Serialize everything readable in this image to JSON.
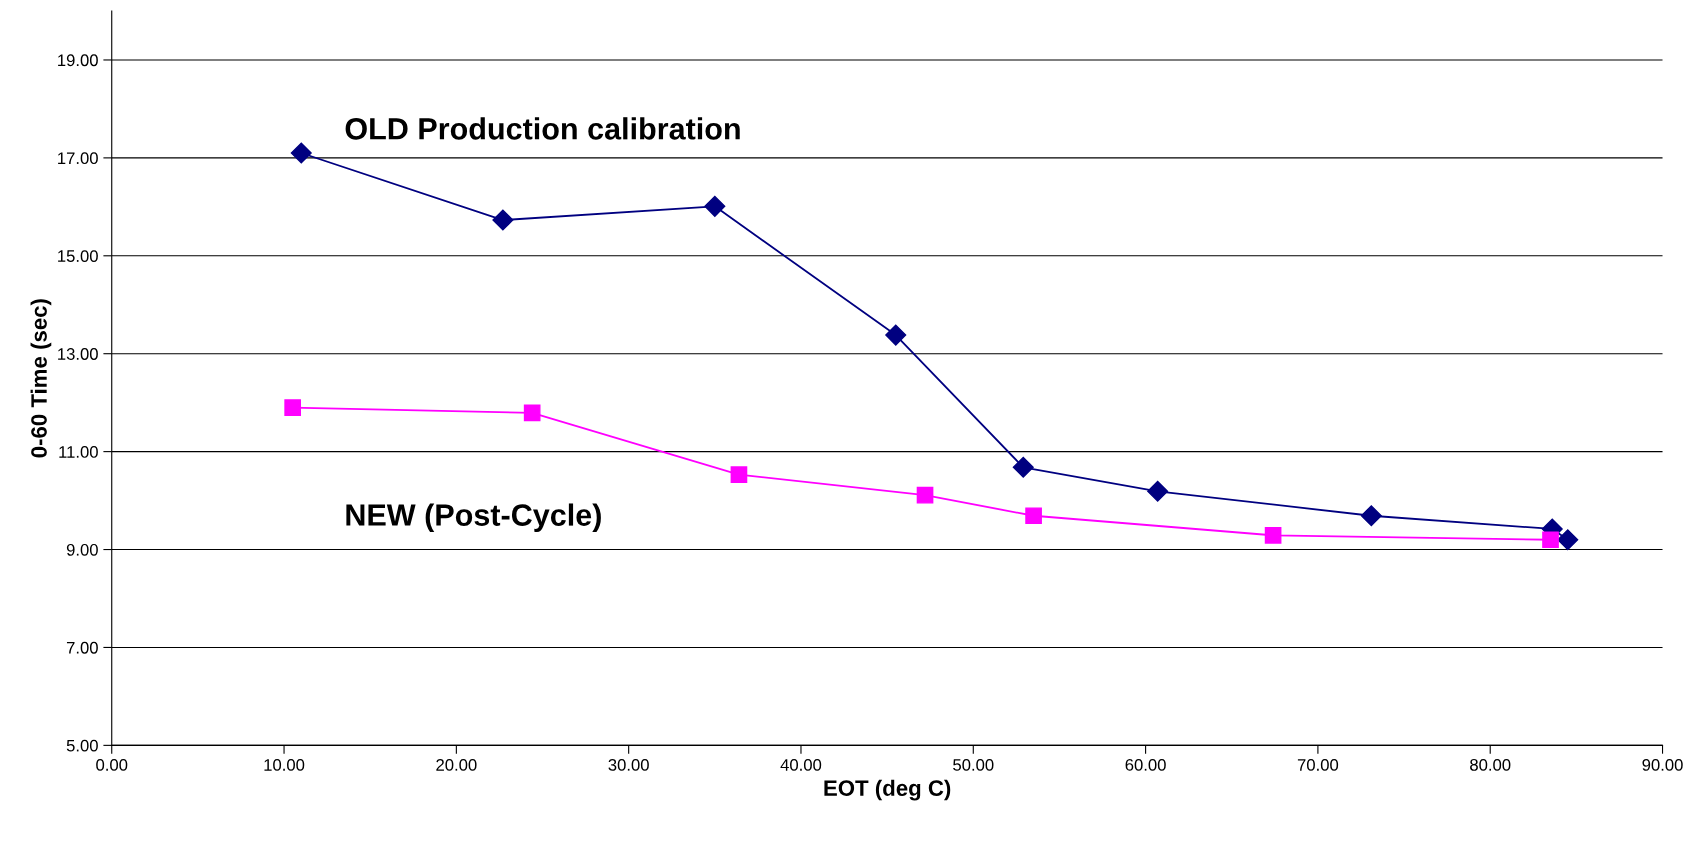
{
  "chart_data": {
    "type": "line",
    "xlabel": "EOT (deg C)",
    "ylabel": "0-60 Time (sec)",
    "xlim": [
      0,
      90
    ],
    "xticks": [
      {
        "value": 0,
        "label": "0.00"
      },
      {
        "value": 10,
        "label": "10.00"
      },
      {
        "value": 20,
        "label": "20.00"
      },
      {
        "value": 30,
        "label": "30.00"
      },
      {
        "value": 40,
        "label": "40.00"
      },
      {
        "value": 50,
        "label": "50.00"
      },
      {
        "value": 60,
        "label": "60.00"
      },
      {
        "value": 70,
        "label": "70.00"
      },
      {
        "value": 80,
        "label": "80.00"
      },
      {
        "value": 90,
        "label": "90.00"
      }
    ],
    "ylim": [
      5,
      20
    ],
    "yticks": [
      {
        "value": 5,
        "label": "5.00"
      },
      {
        "value": 7,
        "label": "7.00"
      },
      {
        "value": 9,
        "label": "9.00"
      },
      {
        "value": 11,
        "label": "11.00"
      },
      {
        "value": 13,
        "label": "13.00"
      },
      {
        "value": 15,
        "label": "15.00"
      },
      {
        "value": 17,
        "label": "17.00"
      },
      {
        "value": 19,
        "label": "19.00"
      }
    ],
    "grid": "y",
    "legend": false,
    "series": [
      {
        "name": "OLD Production calibration",
        "color": "#000080",
        "marker": "diamond",
        "x": [
          11.0,
          22.7,
          35.0,
          45.5,
          52.9,
          60.7,
          73.1,
          83.6,
          84.5
        ],
        "values": [
          17.1,
          15.73,
          16.01,
          13.38,
          10.68,
          10.19,
          9.69,
          9.42,
          9.2
        ]
      },
      {
        "name": "NEW (Post-Cycle)",
        "color": "#ff00ff",
        "marker": "square",
        "x": [
          10.5,
          24.4,
          36.4,
          47.2,
          53.5,
          67.4,
          83.5
        ],
        "values": [
          11.9,
          11.79,
          10.53,
          10.11,
          9.69,
          9.29,
          9.2
        ]
      }
    ]
  }
}
